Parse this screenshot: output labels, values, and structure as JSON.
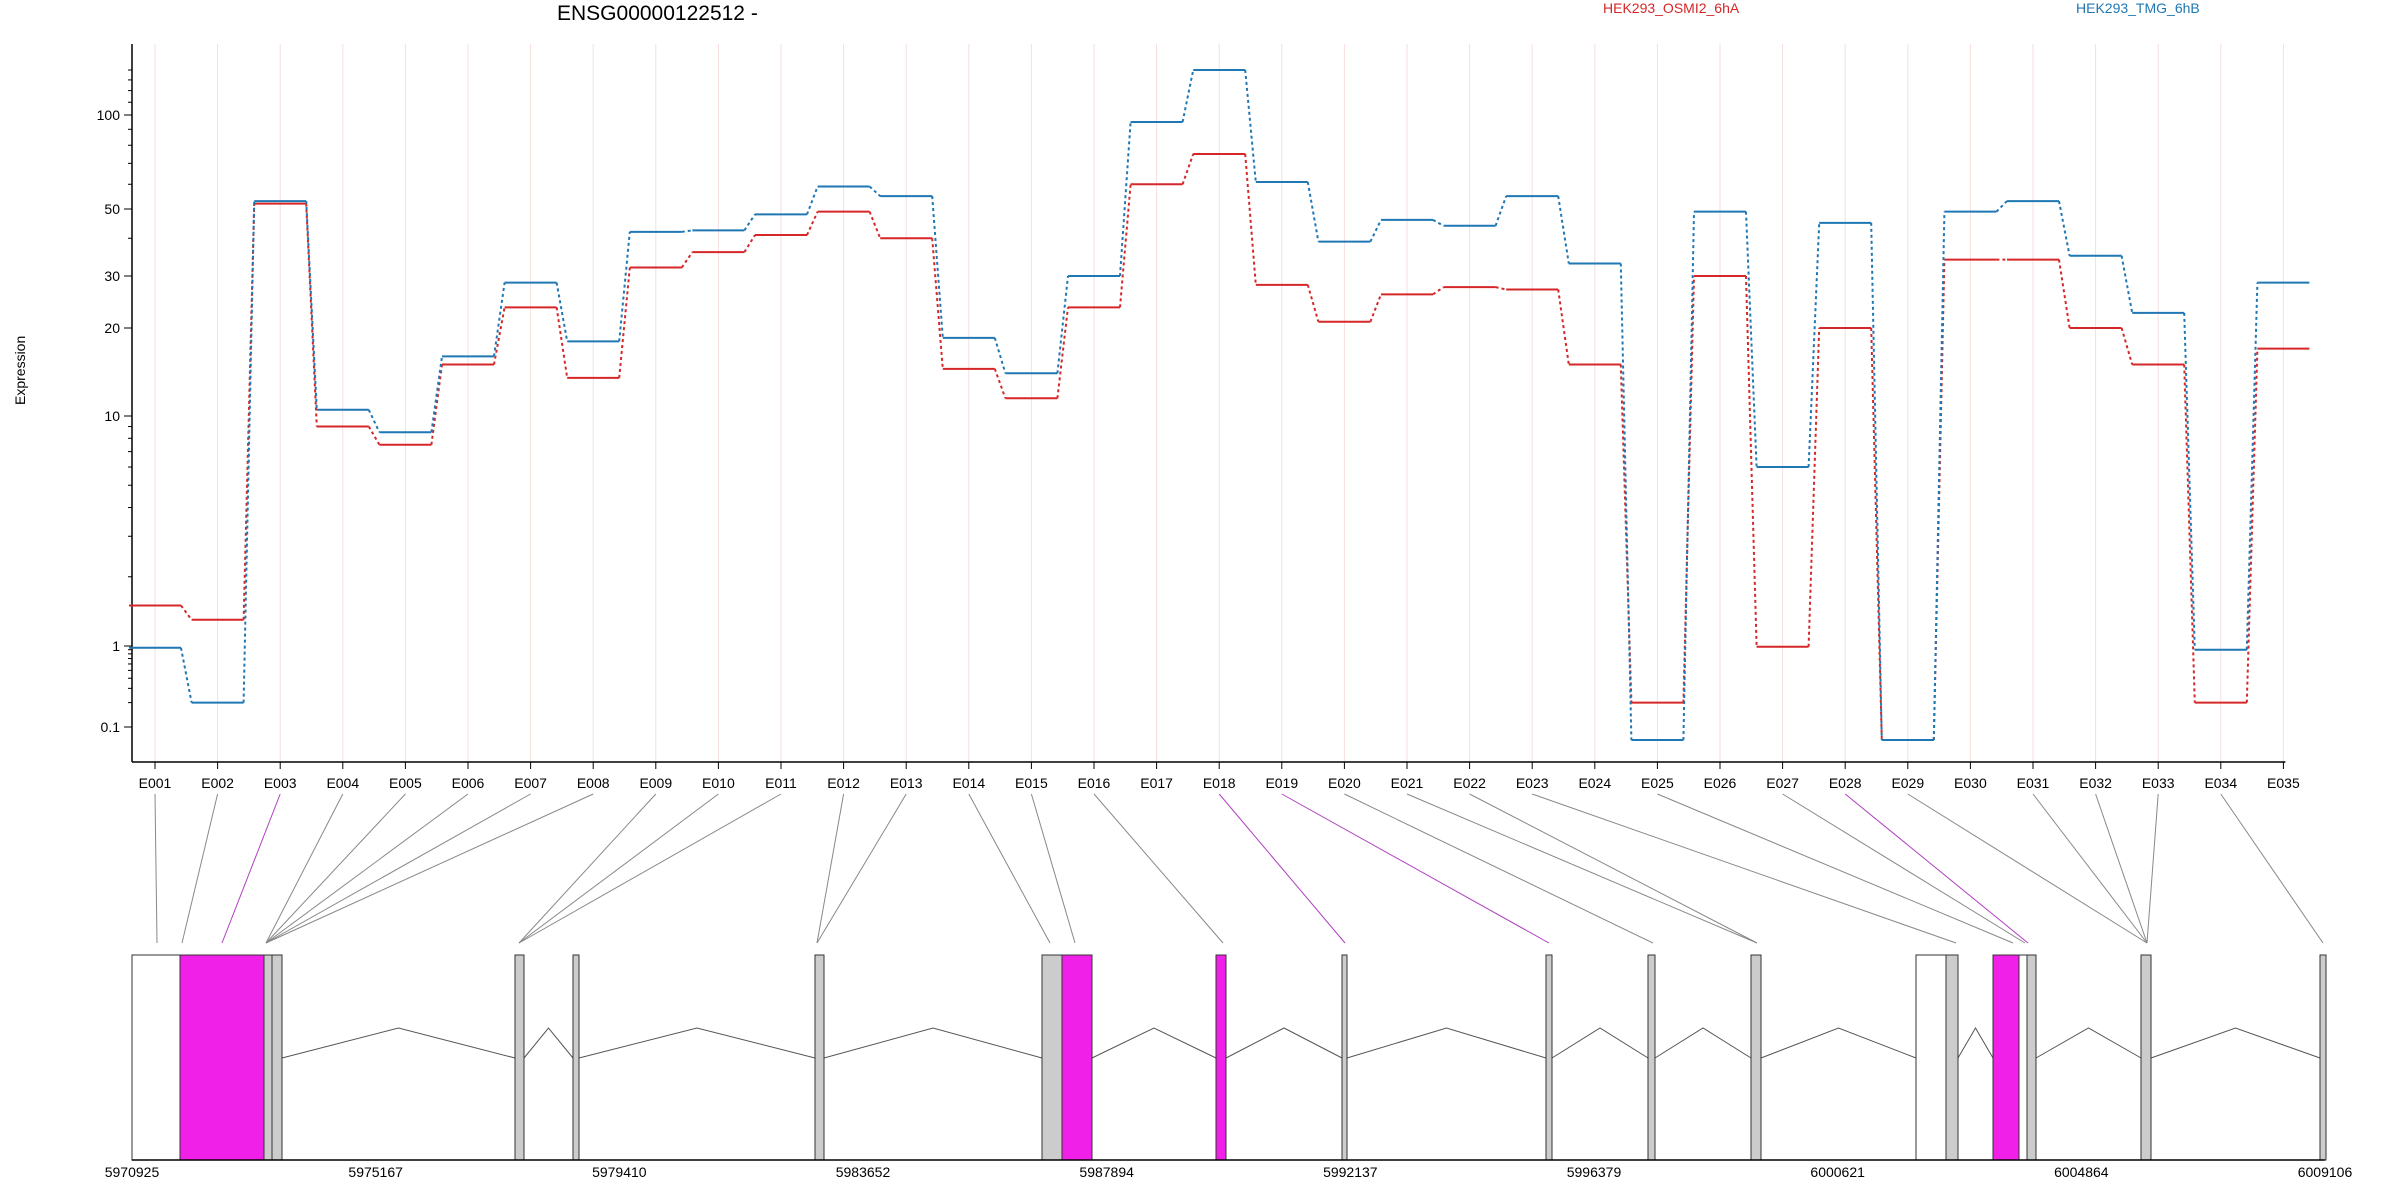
{
  "chart_data": {
    "type": "line",
    "title": "ENSG00000122512 -",
    "ylabel": "Expression",
    "yscale": "log",
    "y_ticks": [
      "0.1",
      "1",
      "10",
      "20",
      "30",
      "50",
      "100"
    ],
    "categories": [
      "E001",
      "E002",
      "E003",
      "E004",
      "E005",
      "E006",
      "E007",
      "E008",
      "E009",
      "E010",
      "E011",
      "E012",
      "E013",
      "E014",
      "E015",
      "E016",
      "E017",
      "E018",
      "E019",
      "E020",
      "E021",
      "E022",
      "E023",
      "E024",
      "E025",
      "E026",
      "E027",
      "E028",
      "E029",
      "E030",
      "E031",
      "E032",
      "E033",
      "E034",
      "E035"
    ],
    "series": [
      {
        "name": "HEK293_OSMI2_6hA",
        "color": "#d62728",
        "values": [
          1.5,
          1.3,
          52,
          9,
          7.5,
          15,
          23.5,
          13.5,
          32,
          36,
          41,
          49,
          40,
          14.5,
          11.5,
          23.5,
          60,
          75,
          28,
          21,
          26,
          27.5,
          27,
          15,
          0.2,
          30,
          0.98,
          20,
          0.08,
          34,
          34,
          20,
          15,
          0.2,
          17
        ]
      },
      {
        "name": "HEK293_TMG_6hB",
        "color": "#1f77b4",
        "values": [
          0.95,
          0.2,
          53,
          10.5,
          8.5,
          16,
          28.5,
          18,
          42,
          42.5,
          48,
          59,
          55,
          18.5,
          14,
          30,
          95,
          140,
          61,
          39,
          46,
          44,
          55,
          33,
          0.08,
          49,
          6,
          45,
          0.08,
          49,
          53,
          35,
          22.5,
          0.9,
          28.5
        ]
      }
    ],
    "genome_ticks": [
      "5970925",
      "5975167",
      "5979410",
      "5983652",
      "5987894",
      "5992137",
      "5996379",
      "6000621",
      "6004864",
      "6009106"
    ],
    "highlight_color": "#f020e8",
    "exon_color": "#cccccc"
  }
}
